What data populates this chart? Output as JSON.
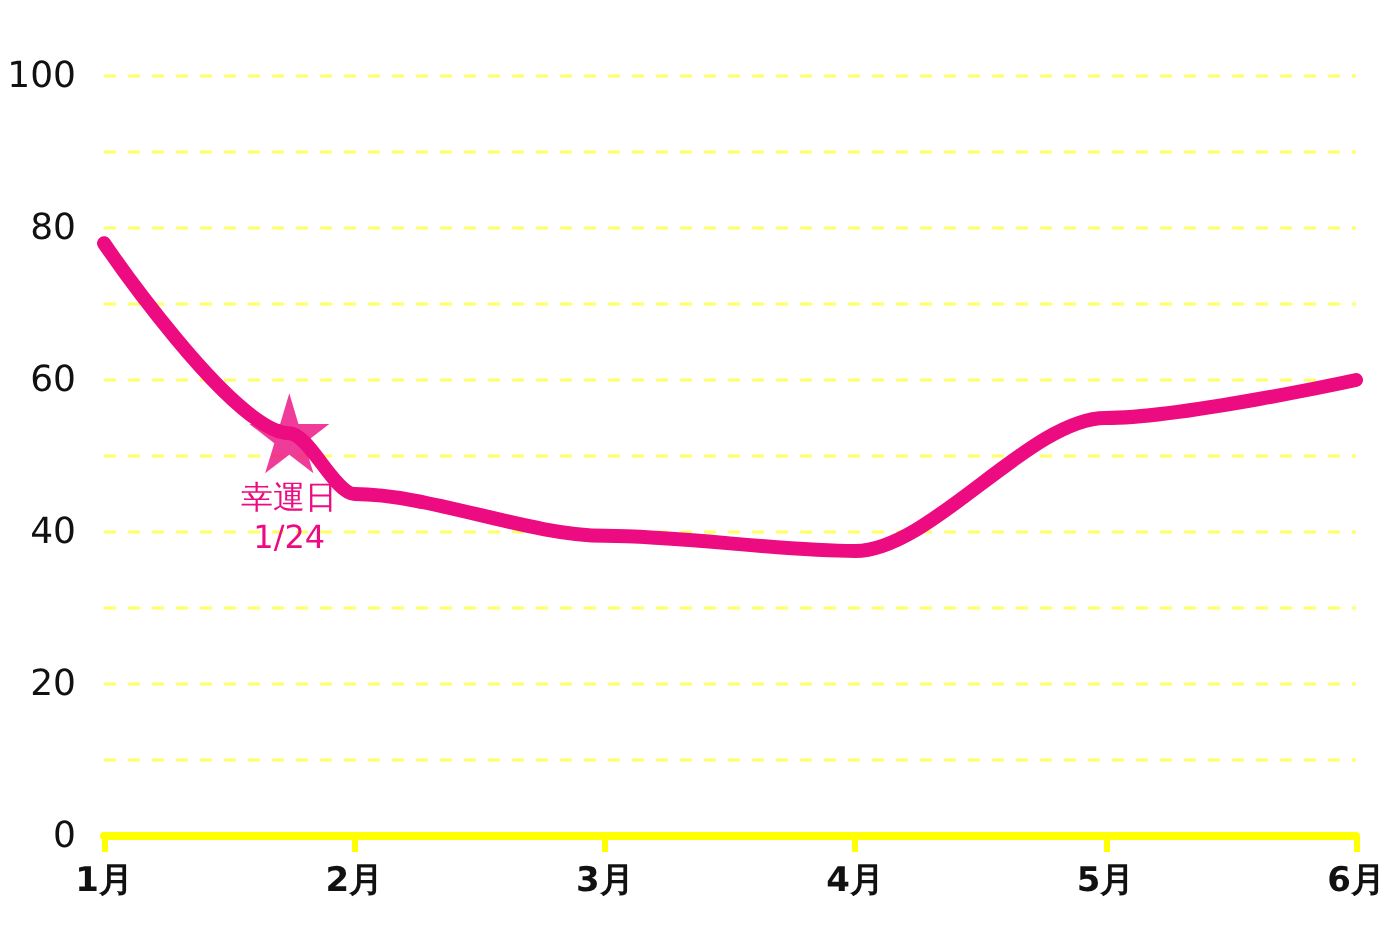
{
  "chart_data": {
    "type": "line",
    "x": [
      1,
      1.74,
      2,
      3,
      4,
      5,
      6
    ],
    "series": [
      {
        "color": "#ec0b80",
        "values": [
          78,
          53,
          45,
          39.5,
          37.5,
          55,
          60
        ],
        "marker": "none"
      },
      {
        "type": "scatter",
        "color": "#ec0b80",
        "x": [
          1.74
        ],
        "values": [
          53
        ],
        "marker": "star"
      }
    ],
    "xlim": [
      1,
      6
    ],
    "xticks": [
      {
        "value": 1,
        "label": "1月"
      },
      {
        "value": 2,
        "label": "2月"
      },
      {
        "value": 3,
        "label": "3月"
      },
      {
        "value": 4,
        "label": "4月"
      },
      {
        "value": 5,
        "label": "5月"
      },
      {
        "value": 6,
        "label": "6月"
      }
    ],
    "ylim": [
      0,
      100
    ],
    "yticks": [
      0,
      {
        "value": 10,
        "label": null
      },
      20,
      {
        "value": 30,
        "label": null
      },
      40,
      {
        "value": 50,
        "label": null
      },
      60,
      {
        "value": 70,
        "label": null
      },
      80,
      {
        "value": 90,
        "label": null
      },
      100
    ],
    "grid": "y",
    "line_style": "solid",
    "annotations": [
      {
        "text": "幸運日\n1/24",
        "x": 1.74,
        "y": 53
      }
    ]
  }
}
